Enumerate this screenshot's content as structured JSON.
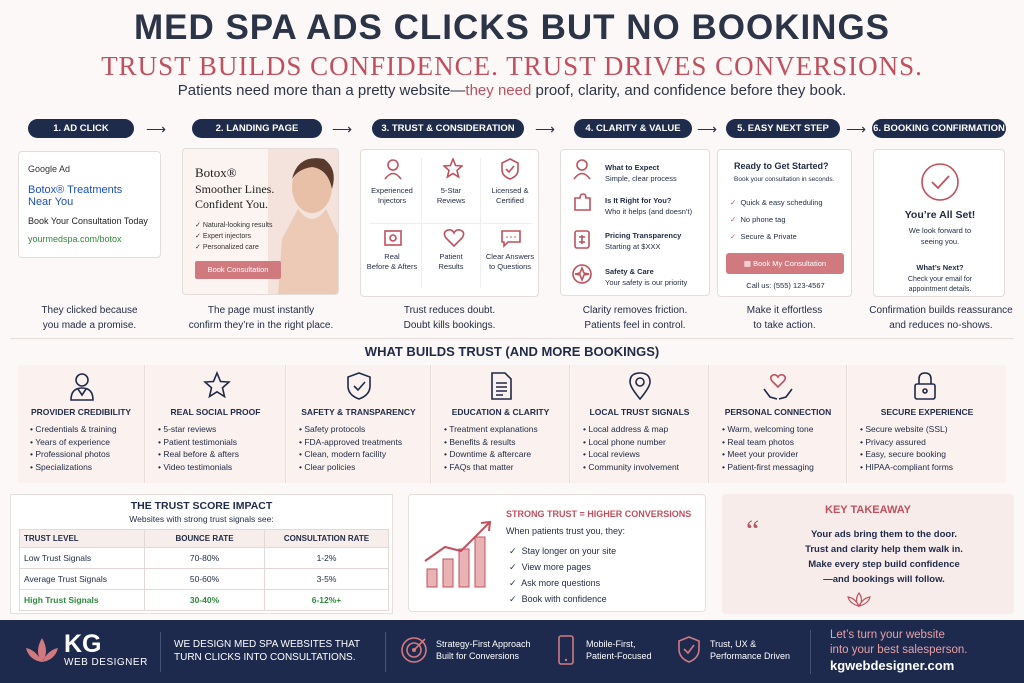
{
  "header": {
    "title": "MED SPA ADS CLICKS BUT NO BOOKINGS",
    "subtitle": "TRUST BUILDS CONFIDENCE. TRUST DRIVES CONVERSIONS.",
    "tagline_a": "Patients need more than a pretty website—",
    "tagline_b": "they need",
    "tagline_c": " proof, clarity, and confidence before they book."
  },
  "steps": [
    "1. AD CLICK",
    "2. LANDING PAGE",
    "3. TRUST & CONSIDERATION",
    "4. CLARITY & VALUE",
    "5. EASY NEXT STEP",
    "6. BOOKING CONFIRMATION"
  ],
  "ad": {
    "label": "Google Ad",
    "headline1": "Botox® Treatments",
    "headline2": "Near You",
    "desc": "Book Your Consultation Today",
    "url": "yourmedspa.com/botox",
    "caption1": "They clicked because",
    "caption2": "you made a promise."
  },
  "landing": {
    "brand": "Botox®",
    "line1": "Smoother Lines.",
    "line2": "Confident You.",
    "checks": [
      "Natural-looking results",
      "Expert injectors",
      "Personalized care"
    ],
    "button": "Book Consultation",
    "caption1": "The page must instantly",
    "caption2": "confirm they’re in the right place."
  },
  "trust": {
    "items": [
      {
        "l1": "Experienced",
        "l2": "Injectors"
      },
      {
        "l1": "5-Star",
        "l2": "Reviews"
      },
      {
        "l1": "Licensed &",
        "l2": "Certified"
      },
      {
        "l1": "Real",
        "l2": "Before & Afters"
      },
      {
        "l1": "Patient",
        "l2": "Results"
      },
      {
        "l1": "Clear Answers",
        "l2": "to Questions"
      }
    ],
    "caption1": "Trust reduces doubt.",
    "caption2": "Doubt kills bookings."
  },
  "clarity": {
    "items": [
      {
        "t": "What to Expect",
        "s": "Simple, clear process"
      },
      {
        "t": "Is It Right for You?",
        "s": "Who it helps (and doesn’t)"
      },
      {
        "t": "Pricing Transparency",
        "s": "Starting at $XXX"
      },
      {
        "t": "Safety & Care",
        "s": "Your safety is our priority"
      }
    ],
    "caption1": "Clarity removes friction.",
    "caption2": "Patients feel in control."
  },
  "next": {
    "title": "Ready to Get Started?",
    "sub": "Book your consultation in seconds.",
    "checks": [
      "Quick & easy scheduling",
      "No phone tag",
      "Secure & Private"
    ],
    "button": "Book My Consultation",
    "call": "Call us: (555) 123-4567",
    "caption1": "Make it effortless",
    "caption2": "to take action."
  },
  "confirm": {
    "title": "You’re All Set!",
    "l1": "We look forward to",
    "l2": "seeing you.",
    "next": "What’s Next?",
    "n1": "Check your email for",
    "n2": "appointment details.",
    "caption1": "Confirmation builds reassurance",
    "caption2": "and reduces no-shows."
  },
  "builds": {
    "title": "WHAT BUILDS TRUST (AND MORE BOOKINGS)",
    "cards": [
      {
        "icon": "doctor-icon",
        "title": "PROVIDER CREDIBILITY",
        "items": [
          "Credentials & training",
          "Years of experience",
          "Professional photos",
          "Specializations"
        ]
      },
      {
        "icon": "star-icon",
        "title": "REAL SOCIAL PROOF",
        "items": [
          "5-star reviews",
          "Patient testimonials",
          "Real before & afters",
          "Video testimonials"
        ]
      },
      {
        "icon": "shield-check-icon",
        "title": "SAFETY & TRANSPARENCY",
        "items": [
          "Safety protocols",
          "FDA-approved treatments",
          "Clean, modern facility",
          "Clear policies"
        ]
      },
      {
        "icon": "document-icon",
        "title": "EDUCATION & CLARITY",
        "items": [
          "Treatment explanations",
          "Benefits & results",
          "Downtime & aftercare",
          "FAQs that matter"
        ]
      },
      {
        "icon": "map-pin-icon",
        "title": "LOCAL TRUST SIGNALS",
        "items": [
          "Local address & map",
          "Local phone number",
          "Local reviews",
          "Community involvement"
        ]
      },
      {
        "icon": "heart-hands-icon",
        "title": "PERSONAL CONNECTION",
        "items": [
          "Warm, welcoming tone",
          "Real team photos",
          "Meet your provider",
          "Patient-first messaging"
        ]
      },
      {
        "icon": "lock-icon",
        "title": "SECURE EXPERIENCE",
        "items": [
          "Secure website (SSL)",
          "Privacy assured",
          "Easy, secure booking",
          "HIPAA-compliant forms"
        ]
      }
    ]
  },
  "score": {
    "title": "THE TRUST SCORE IMPACT",
    "sub": "Websites with strong trust signals see:",
    "headers": [
      "TRUST LEVEL",
      "BOUNCE RATE",
      "CONSULTATION RATE"
    ],
    "rows": [
      [
        "Low Trust Signals",
        "70-80%",
        "1-2%"
      ],
      [
        "Average Trust Signals",
        "50-60%",
        "3-5%"
      ],
      [
        "High Trust Signals",
        "30-40%",
        "6-12%+"
      ]
    ],
    "high_word": "High"
  },
  "strong": {
    "title": "STRONG TRUST = HIGHER CONVERSIONS",
    "intro": "When patients trust you, they:",
    "items": [
      "Stay longer on your site",
      "View more pages",
      "Ask more questions",
      "Book with confidence"
    ]
  },
  "takeaway": {
    "title": "KEY TAKEAWAY",
    "l1": "Your ads bring them to the door.",
    "l2": "Trust and clarity help them walk in.",
    "l3": "Make every step build confidence",
    "l4": "—and bookings will follow."
  },
  "footer": {
    "logo": "KG",
    "logo_sub": "WEB DESIGNER",
    "tag1": "WE DESIGN MED SPA WEBSITES THAT",
    "tag2": "TURN CLICKS INTO CONSULTATIONS.",
    "f1a": "Strategy-First Approach",
    "f1b": "Built for Conversions",
    "f2a": "Mobile-First,",
    "f2b": "Patient-Focused",
    "f3a": "Trust, UX &",
    "f3b": "Performance Driven",
    "cta1": "Let’s turn your website",
    "cta2": "into your best salesperson.",
    "site": "kgwebdesigner.com"
  },
  "colors": {
    "navy": "#1f2b4a",
    "rose": "#c0505d",
    "green": "#2f8a3c"
  }
}
